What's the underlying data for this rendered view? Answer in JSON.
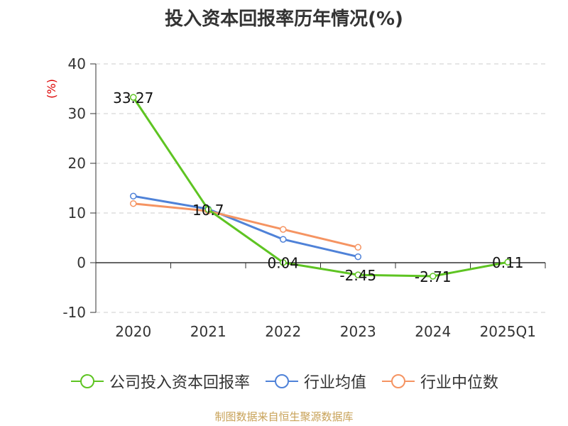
{
  "title": "投入资本回报率历年情况(%)",
  "source": "制图数据来自恒生聚源数据库",
  "colors": {
    "grid": "#cccccc",
    "axis": "#333333",
    "text": "#333333",
    "unit": "#dd0000"
  },
  "chart_data": {
    "type": "line",
    "ylabel": "(%)",
    "categories": [
      "2020",
      "2021",
      "2022",
      "2023",
      "2024",
      "2025Q1"
    ],
    "yticks": [
      40,
      30,
      20,
      10,
      0,
      -10
    ],
    "ylim": [
      -10,
      40
    ],
    "grid": true,
    "legend_position": "bottom",
    "series": [
      {
        "name": "公司投入资本回报率",
        "color": "#5ec422",
        "values": [
          33.27,
          10.7,
          0.04,
          -2.45,
          -2.71,
          0.11
        ],
        "labels": [
          "33.27",
          "10.7",
          "0.04",
          "-2.45",
          "-2.71",
          "0.11"
        ]
      },
      {
        "name": "行业均值",
        "color": "#4f82d8",
        "values": [
          13.4,
          10.8,
          4.7,
          1.2,
          null,
          null
        ],
        "labels": []
      },
      {
        "name": "行业中位数",
        "color": "#f59462",
        "values": [
          11.9,
          10.4,
          6.7,
          3.1,
          null,
          null
        ],
        "labels": []
      }
    ]
  }
}
